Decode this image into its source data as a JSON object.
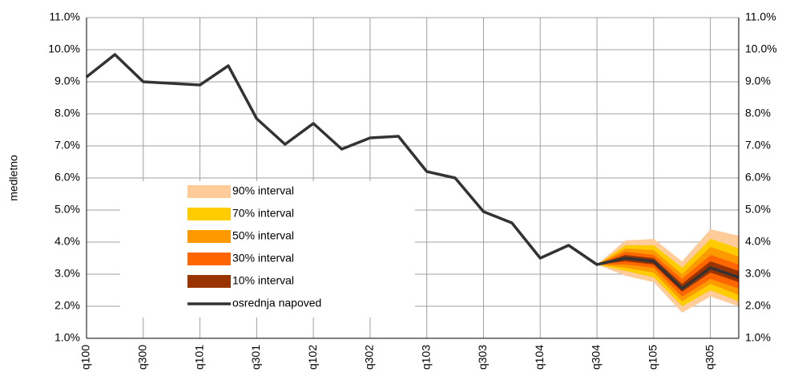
{
  "chart_data": {
    "type": "line",
    "y_label": "medletno",
    "categories": [
      "q100",
      null,
      "q300",
      null,
      "q101",
      null,
      "q301",
      null,
      "q102",
      null,
      "q302",
      null,
      "q103",
      null,
      "q303",
      null,
      "q104",
      null,
      "q304",
      null,
      "q105",
      null,
      "q305",
      null
    ],
    "series": [
      {
        "name": "osrednja napoved",
        "color": "#333333",
        "values": [
          9.15,
          9.85,
          9.0,
          8.95,
          8.9,
          9.5,
          7.85,
          7.05,
          7.7,
          6.9,
          7.25,
          7.3,
          6.2,
          6.0,
          4.95,
          4.6,
          3.5,
          3.9,
          3.3,
          3.5,
          3.4,
          2.55,
          3.2,
          2.9
        ]
      }
    ],
    "fan": [
      {
        "name": "90% interval",
        "color": "#ffcc99",
        "lower": [
          null,
          null,
          null,
          null,
          null,
          null,
          null,
          null,
          null,
          null,
          null,
          null,
          null,
          null,
          null,
          null,
          null,
          null,
          3.3,
          2.95,
          2.75,
          1.8,
          2.3,
          2.0
        ],
        "upper": [
          null,
          null,
          null,
          null,
          null,
          null,
          null,
          null,
          null,
          null,
          null,
          null,
          null,
          null,
          null,
          null,
          null,
          null,
          3.3,
          4.05,
          4.1,
          3.4,
          4.4,
          4.2
        ]
      },
      {
        "name": "70% interval",
        "color": "#ffcc00",
        "lower": [
          null,
          null,
          null,
          null,
          null,
          null,
          null,
          null,
          null,
          null,
          null,
          null,
          null,
          null,
          null,
          null,
          null,
          null,
          3.3,
          3.1,
          2.9,
          2.0,
          2.5,
          2.15
        ],
        "upper": [
          null,
          null,
          null,
          null,
          null,
          null,
          null,
          null,
          null,
          null,
          null,
          null,
          null,
          null,
          null,
          null,
          null,
          null,
          3.3,
          3.9,
          3.9,
          3.2,
          4.1,
          3.8
        ]
      },
      {
        "name": "50% interval",
        "color": "#ff9900",
        "lower": [
          null,
          null,
          null,
          null,
          null,
          null,
          null,
          null,
          null,
          null,
          null,
          null,
          null,
          null,
          null,
          null,
          null,
          null,
          3.3,
          3.2,
          3.05,
          2.15,
          2.7,
          2.35
        ],
        "upper": [
          null,
          null,
          null,
          null,
          null,
          null,
          null,
          null,
          null,
          null,
          null,
          null,
          null,
          null,
          null,
          null,
          null,
          null,
          3.3,
          3.8,
          3.75,
          3.0,
          3.85,
          3.55
        ]
      },
      {
        "name": "30% interval",
        "color": "#ff6600",
        "lower": [
          null,
          null,
          null,
          null,
          null,
          null,
          null,
          null,
          null,
          null,
          null,
          null,
          null,
          null,
          null,
          null,
          null,
          null,
          3.3,
          3.3,
          3.2,
          2.3,
          2.85,
          2.55
        ],
        "upper": [
          null,
          null,
          null,
          null,
          null,
          null,
          null,
          null,
          null,
          null,
          null,
          null,
          null,
          null,
          null,
          null,
          null,
          null,
          3.3,
          3.7,
          3.6,
          2.85,
          3.6,
          3.3
        ]
      },
      {
        "name": "10% interval",
        "color": "#993300",
        "lower": [
          null,
          null,
          null,
          null,
          null,
          null,
          null,
          null,
          null,
          null,
          null,
          null,
          null,
          null,
          null,
          null,
          null,
          null,
          3.3,
          3.4,
          3.3,
          2.45,
          3.05,
          2.75
        ],
        "upper": [
          null,
          null,
          null,
          null,
          null,
          null,
          null,
          null,
          null,
          null,
          null,
          null,
          null,
          null,
          null,
          null,
          null,
          null,
          3.3,
          3.6,
          3.5,
          2.7,
          3.4,
          3.1
        ]
      }
    ],
    "ylim": [
      1,
      11
    ],
    "yticks": [
      {
        "value": 1,
        "label": "1.0%"
      },
      {
        "value": 2,
        "label": "2.0%"
      },
      {
        "value": 3,
        "label": "3.0%"
      },
      {
        "value": 4,
        "label": "4.0%"
      },
      {
        "value": 5,
        "label": "5.0%"
      },
      {
        "value": 6,
        "label": "6.0%"
      },
      {
        "value": 7,
        "label": "7.0%"
      },
      {
        "value": 8,
        "label": "8.0%"
      },
      {
        "value": 9,
        "label": "9.0%"
      },
      {
        "value": 10,
        "label": "10.0%"
      },
      {
        "value": 11,
        "label": "11.0%"
      }
    ],
    "grid": true
  }
}
